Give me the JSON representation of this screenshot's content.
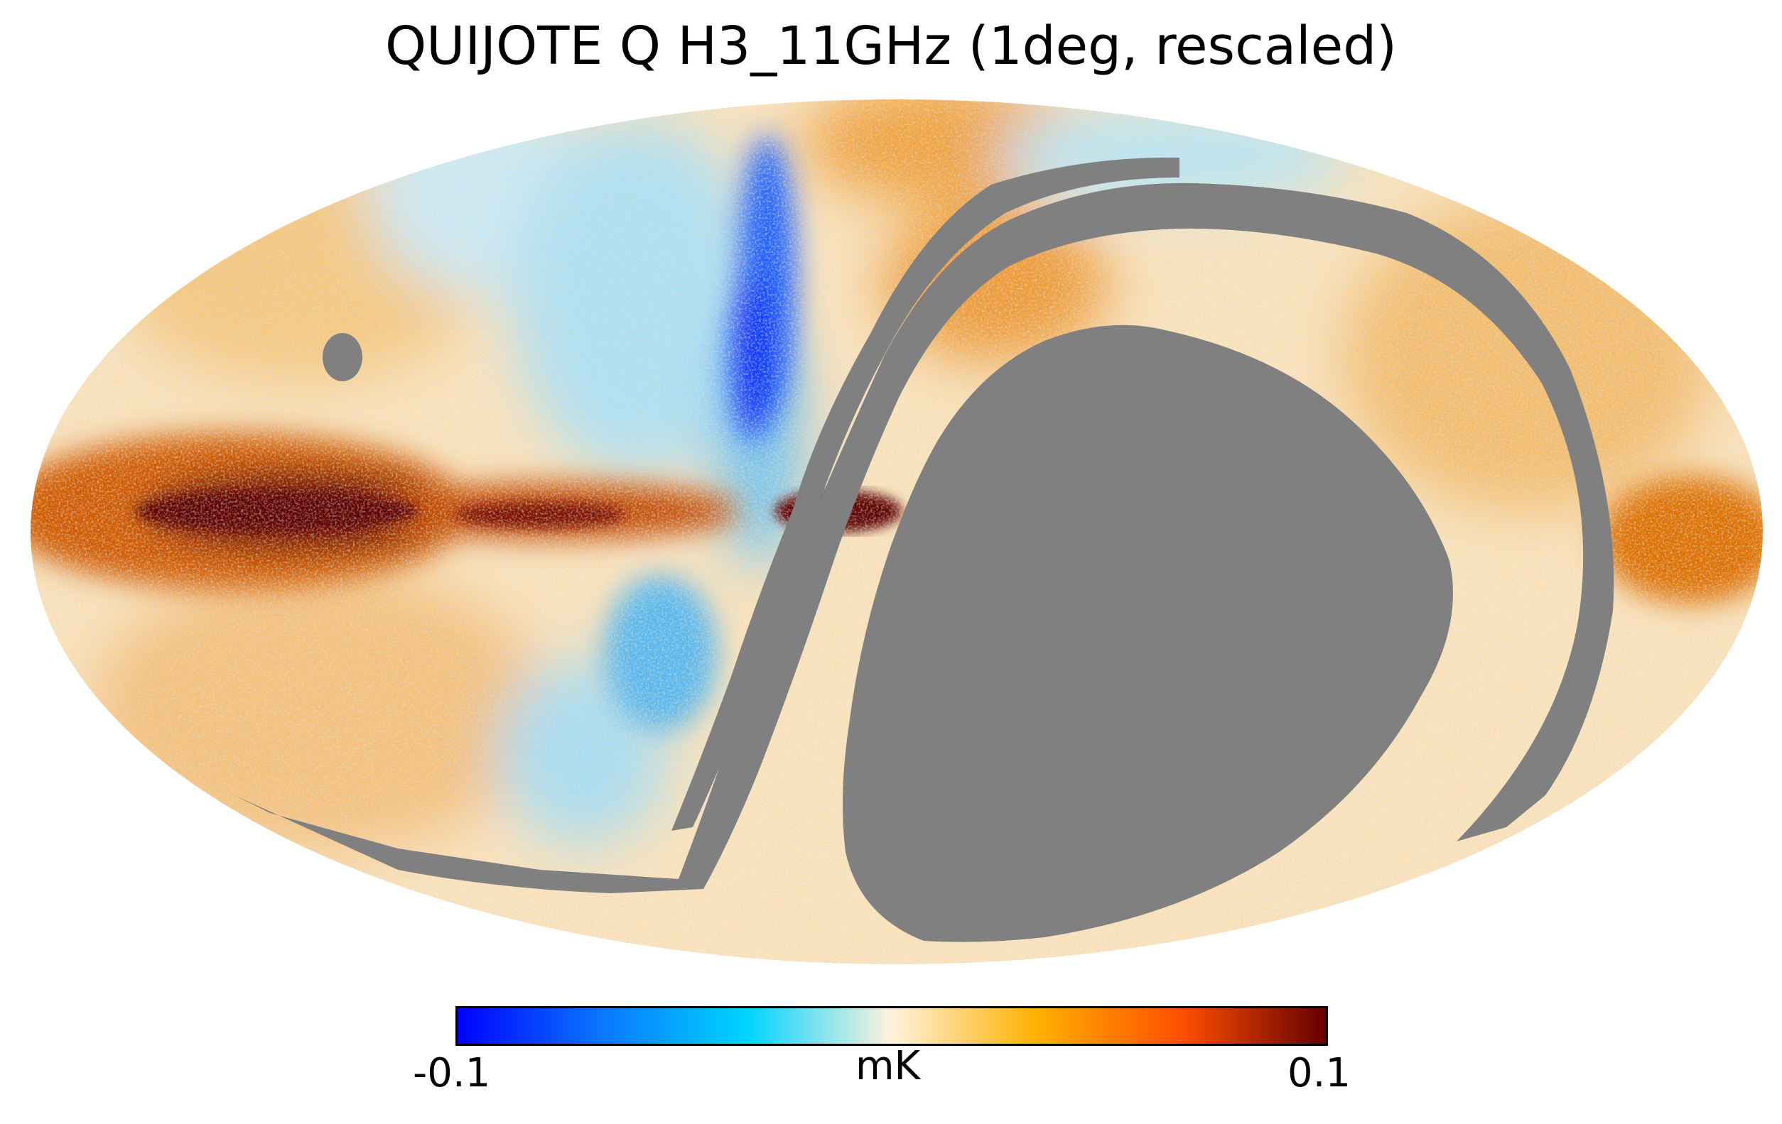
{
  "title": "QUIJOTE Q H3_11GHz (1deg, rescaled)",
  "projection": "mollweide",
  "mask_color": "#808080",
  "colorbar": {
    "min_label": "-0.1",
    "max_label": "0.1",
    "unit": "mK",
    "colormap": [
      "#0000ff",
      "#0a78ff",
      "#00d4ff",
      "#fff2dc",
      "#ffb000",
      "#ff4f00",
      "#650000"
    ]
  }
}
